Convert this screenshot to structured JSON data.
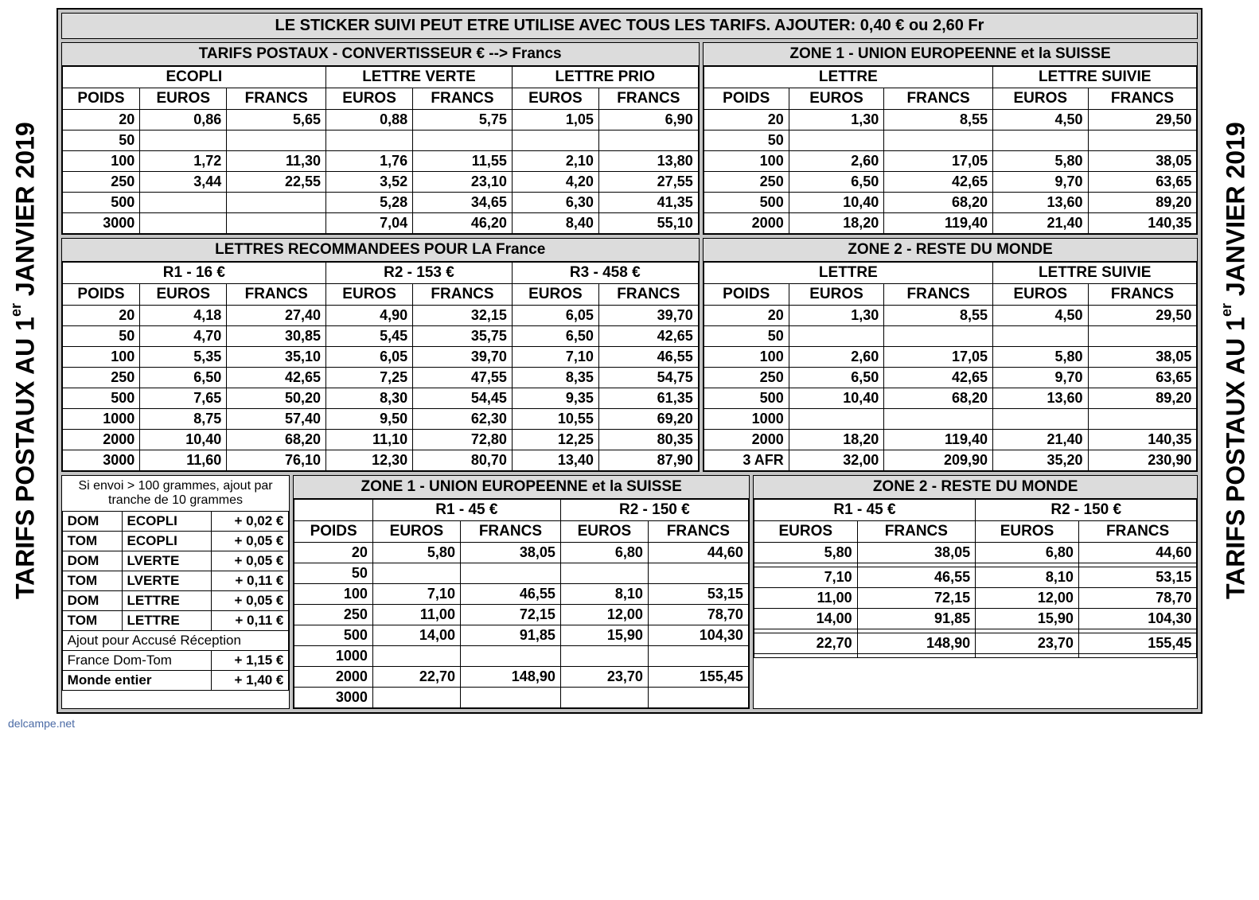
{
  "side_title_html": "TARIFS POSTAUX AU 1<sup>er</sup> JANVIER 2019",
  "top_banner": "LE STICKER SUIVI PEUT ETRE UTILISE AVEC TOUS LES TARIFS. AJOUTER: 0,40 € ou  2,60 Fr",
  "sec1_left_hdr": "TARIFS  POSTAUX - CONVERTISSEUR   €  --> Francs",
  "sec1_right_hdr": "ZONE 1 -  UNION  EUROPEENNE et la SUISSE",
  "cols": {
    "poids": "POIDS",
    "euros": "EUROS",
    "francs": "FRANCS"
  },
  "ecopli": {
    "title": "ECOPLI",
    "rows": [
      [
        "20",
        "0,86",
        "5,65"
      ],
      [
        "50",
        "",
        ""
      ],
      [
        "100",
        "1,72",
        "11,30"
      ],
      [
        "250",
        "3,44",
        "22,55"
      ],
      [
        "500",
        "",
        ""
      ],
      [
        "3000",
        "",
        ""
      ]
    ]
  },
  "lverte": {
    "title": "LETTRE VERTE",
    "rows": [
      [
        "0,88",
        "5,75"
      ],
      [
        "",
        ""
      ],
      [
        "1,76",
        "11,55"
      ],
      [
        "3,52",
        "23,10"
      ],
      [
        "5,28",
        "34,65"
      ],
      [
        "7,04",
        "46,20"
      ]
    ]
  },
  "lprio": {
    "title": "LETTRE PRIO",
    "rows": [
      [
        "1,05",
        "6,90"
      ],
      [
        "",
        ""
      ],
      [
        "2,10",
        "13,80"
      ],
      [
        "4,20",
        "27,55"
      ],
      [
        "6,30",
        "41,35"
      ],
      [
        "8,40",
        "55,10"
      ]
    ]
  },
  "z1_lettre": {
    "title": "LETTRE",
    "rows": [
      [
        "20",
        "1,30",
        "8,55"
      ],
      [
        "50",
        "",
        ""
      ],
      [
        "100",
        "2,60",
        "17,05"
      ],
      [
        "250",
        "6,50",
        "42,65"
      ],
      [
        "500",
        "10,40",
        "68,20"
      ],
      [
        "2000",
        "18,20",
        "119,40"
      ]
    ]
  },
  "z1_suivie": {
    "title": "LETTRE SUIVIE",
    "rows": [
      [
        "4,50",
        "29,50"
      ],
      [
        "",
        ""
      ],
      [
        "5,80",
        "38,05"
      ],
      [
        "9,70",
        "63,65"
      ],
      [
        "13,60",
        "89,20"
      ],
      [
        "21,40",
        "140,35"
      ]
    ]
  },
  "sec2_left_hdr": "LETTRES  RECOMMANDEES POUR LA France",
  "sec2_right_hdr": "ZONE 2 -  RESTE DU MONDE",
  "r_titles": {
    "r1": "R1 - 16 €",
    "r2": "R2 - 153 €",
    "r3": "R3 -  458 €"
  },
  "r1": {
    "rows": [
      [
        "20",
        "4,18",
        "27,40"
      ],
      [
        "50",
        "4,70",
        "30,85"
      ],
      [
        "100",
        "5,35",
        "35,10"
      ],
      [
        "250",
        "6,50",
        "42,65"
      ],
      [
        "500",
        "7,65",
        "50,20"
      ],
      [
        "1000",
        "8,75",
        "57,40"
      ],
      [
        "2000",
        "10,40",
        "68,20"
      ],
      [
        "3000",
        "11,60",
        "76,10"
      ]
    ]
  },
  "r2": {
    "rows": [
      [
        "4,90",
        "32,15"
      ],
      [
        "5,45",
        "35,75"
      ],
      [
        "6,05",
        "39,70"
      ],
      [
        "7,25",
        "47,55"
      ],
      [
        "8,30",
        "54,45"
      ],
      [
        "9,50",
        "62,30"
      ],
      [
        "11,10",
        "72,80"
      ],
      [
        "12,30",
        "80,70"
      ]
    ]
  },
  "r3": {
    "rows": [
      [
        "6,05",
        "39,70"
      ],
      [
        "6,50",
        "42,65"
      ],
      [
        "7,10",
        "46,55"
      ],
      [
        "8,35",
        "54,75"
      ],
      [
        "9,35",
        "61,35"
      ],
      [
        "10,55",
        "69,20"
      ],
      [
        "12,25",
        "80,35"
      ],
      [
        "13,40",
        "87,90"
      ]
    ]
  },
  "z2_lettre": {
    "title": "LETTRE",
    "rows": [
      [
        "20",
        "1,30",
        "8,55"
      ],
      [
        "50",
        "",
        ""
      ],
      [
        "100",
        "2,60",
        "17,05"
      ],
      [
        "250",
        "6,50",
        "42,65"
      ],
      [
        "500",
        "10,40",
        "68,20"
      ],
      [
        "1000",
        "",
        ""
      ],
      [
        "2000",
        "18,20",
        "119,40"
      ],
      [
        "3 AFR",
        "32,00",
        "209,90"
      ]
    ]
  },
  "z2_suivie": {
    "title": "LETTRE SUIVIE",
    "rows": [
      [
        "4,50",
        "29,50"
      ],
      [
        "",
        ""
      ],
      [
        "5,80",
        "38,05"
      ],
      [
        "9,70",
        "63,65"
      ],
      [
        "13,60",
        "89,20"
      ],
      [
        "",
        ""
      ],
      [
        "21,40",
        "140,35"
      ],
      [
        "35,20",
        "230,90"
      ]
    ]
  },
  "noteblock": {
    "note": "Si envoi > 100 grammes, ajout par tranche de 10 grammes",
    "rows": [
      [
        "DOM",
        "ECOPLI",
        "+ 0,02 €"
      ],
      [
        "TOM",
        "ECOPLI",
        "+ 0,05 €"
      ],
      [
        "DOM",
        "LVERTE",
        "+ 0,05 €"
      ],
      [
        "TOM",
        "LVERTE",
        "+ 0,11 €"
      ],
      [
        "DOM",
        "LETTRE",
        "+ 0,05 €"
      ],
      [
        "TOM",
        "LETTRE",
        "+ 0,11 €"
      ]
    ],
    "ar_hdr": "Ajout pour Accusé Réception",
    "ar1": [
      "France Dom-Tom",
      "+ 1,15 €"
    ],
    "ar2": [
      "Monde entier",
      "+ 1,40 €"
    ]
  },
  "sec3_z1_hdr": "ZONE 1 -  UNION  EUROPEENNE et la SUISSE",
  "sec3_z2_hdr": "ZONE 2 -  RESTE DU MONDE",
  "intl_titles": {
    "r1": "R1 - 45 €",
    "r2": "R2 - 150 €"
  },
  "intl_poids": [
    "20",
    "50",
    "100",
    "250",
    "500",
    "1000",
    "2000",
    "3000"
  ],
  "intl_z1_r1": [
    [
      "5,80",
      "38,05"
    ],
    [
      "",
      ""
    ],
    [
      "7,10",
      "46,55"
    ],
    [
      "11,00",
      "72,15"
    ],
    [
      "14,00",
      "91,85"
    ],
    [
      "",
      ""
    ],
    [
      "22,70",
      "148,90"
    ],
    [
      "",
      ""
    ]
  ],
  "intl_z1_r2": [
    [
      "6,80",
      "44,60"
    ],
    [
      "",
      ""
    ],
    [
      "8,10",
      "53,15"
    ],
    [
      "12,00",
      "78,70"
    ],
    [
      "15,90",
      "104,30"
    ],
    [
      "",
      ""
    ],
    [
      "23,70",
      "155,45"
    ],
    [
      "",
      ""
    ]
  ],
  "intl_z2_r1": [
    [
      "5,80",
      "38,05"
    ],
    [
      "",
      ""
    ],
    [
      "7,10",
      "46,55"
    ],
    [
      "11,00",
      "72,15"
    ],
    [
      "14,00",
      "91,85"
    ],
    [
      "",
      ""
    ],
    [
      "22,70",
      "148,90"
    ],
    [
      "",
      ""
    ]
  ],
  "intl_z2_r2": [
    [
      "6,80",
      "44,60"
    ],
    [
      "",
      ""
    ],
    [
      "8,10",
      "53,15"
    ],
    [
      "12,00",
      "78,70"
    ],
    [
      "15,90",
      "104,30"
    ],
    [
      "",
      ""
    ],
    [
      "23,70",
      "155,45"
    ],
    [
      "",
      ""
    ]
  ],
  "footer": "delcampe.net",
  "colors": {
    "bg": "#c4c4c4",
    "header": "#dcdcdc",
    "border": "#000000"
  }
}
